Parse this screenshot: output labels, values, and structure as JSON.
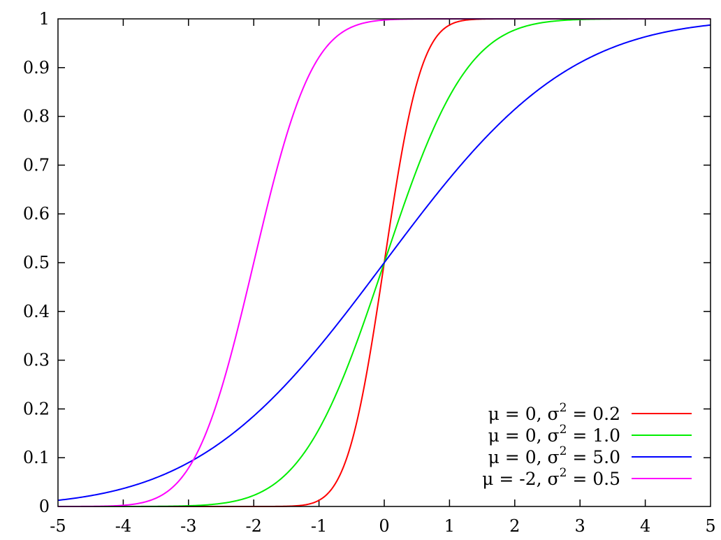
{
  "chart_data": {
    "type": "line",
    "title": "",
    "xlabel": "",
    "ylabel": "",
    "xlim": [
      -5,
      5
    ],
    "ylim": [
      0,
      1
    ],
    "grid": false,
    "legend_position": "bottom-right",
    "xticks": [
      "-5",
      "-4",
      "-3",
      "-2",
      "-1",
      "0",
      "1",
      "2",
      "3",
      "4",
      "5"
    ],
    "yticks": [
      "0",
      "0.1",
      "0.2",
      "0.3",
      "0.4",
      "0.5",
      "0.6",
      "0.7",
      "0.8",
      "0.9",
      "1"
    ],
    "series": [
      {
        "name": "μ =  0, σ² = 0.2",
        "mu_label": "μ =  0, σ",
        "sigma_sq_value": "= 0.2",
        "mu": 0,
        "variance": 0.2,
        "color": "#ff0000",
        "x": [
          -5,
          -4.5,
          -4,
          -3.5,
          -3,
          -2.5,
          -2,
          -1.5,
          -1,
          -0.75,
          -0.5,
          -0.25,
          0,
          0.25,
          0.5,
          0.75,
          1,
          1.5,
          2,
          2.5,
          3,
          3.5,
          4,
          4.5,
          5
        ],
        "y": [
          0,
          0,
          0,
          0,
          0,
          0,
          0,
          0.0004,
          0.0127,
          0.0468,
          0.1318,
          0.2881,
          0.5,
          0.7119,
          0.8682,
          0.9532,
          0.9873,
          0.9996,
          1,
          1,
          1,
          1,
          1,
          1,
          1
        ]
      },
      {
        "name": "μ =  0, σ² = 1.0",
        "mu_label": "μ =  0, σ",
        "sigma_sq_value": "= 1.0",
        "mu": 0,
        "variance": 1.0,
        "color": "#00ee00",
        "x": [
          -5,
          -4.5,
          -4,
          -3.5,
          -3,
          -2.5,
          -2,
          -1.5,
          -1,
          -0.75,
          -0.5,
          -0.25,
          0,
          0.25,
          0.5,
          0.75,
          1,
          1.5,
          2,
          2.5,
          3,
          3.5,
          4,
          4.5,
          5
        ],
        "y": [
          0,
          0,
          0,
          0.0002,
          0.0013,
          0.0062,
          0.0228,
          0.0668,
          0.1587,
          0.2266,
          0.3085,
          0.4013,
          0.5,
          0.5987,
          0.6915,
          0.7734,
          0.8413,
          0.9332,
          0.9772,
          0.9938,
          0.9987,
          0.9998,
          1,
          1,
          1
        ]
      },
      {
        "name": "μ =  0, σ² = 5.0",
        "mu_label": "μ =  0, σ",
        "sigma_sq_value": "= 5.0",
        "mu": 0,
        "variance": 5.0,
        "color": "#0000ff",
        "x": [
          -5,
          -4.5,
          -4,
          -3.5,
          -3,
          -2.5,
          -2,
          -1.5,
          -1,
          -0.5,
          0,
          0.5,
          1,
          1.5,
          2,
          2.5,
          3,
          3.5,
          4,
          4.5,
          5
        ],
        "y": [
          0.0127,
          0.0221,
          0.0368,
          0.0588,
          0.0899,
          0.1318,
          0.1855,
          0.2512,
          0.3274,
          0.4115,
          0.5,
          0.5885,
          0.6726,
          0.7488,
          0.8145,
          0.8682,
          0.9101,
          0.9412,
          0.9632,
          0.9779,
          0.9873
        ]
      },
      {
        "name": "μ = -2, σ² = 0.5",
        "mu_label": "μ = -2, σ",
        "sigma_sq_value": "= 0.5",
        "mu": -2,
        "variance": 0.5,
        "color": "#ff00ff",
        "x": [
          -5,
          -4.5,
          -4,
          -3.75,
          -3.5,
          -3.25,
          -3,
          -2.75,
          -2.5,
          -2.25,
          -2,
          -1.75,
          -1.5,
          -1.25,
          -1,
          -0.75,
          -0.5,
          0,
          1,
          2,
          3,
          4,
          5
        ],
        "y": [
          0,
          0.0002,
          0.0023,
          0.0067,
          0.0169,
          0.0385,
          0.0786,
          0.1444,
          0.2398,
          0.3618,
          0.5,
          0.6382,
          0.7602,
          0.8556,
          0.9214,
          0.9615,
          0.9831,
          0.9977,
          1,
          1,
          1,
          1,
          1
        ]
      }
    ]
  }
}
